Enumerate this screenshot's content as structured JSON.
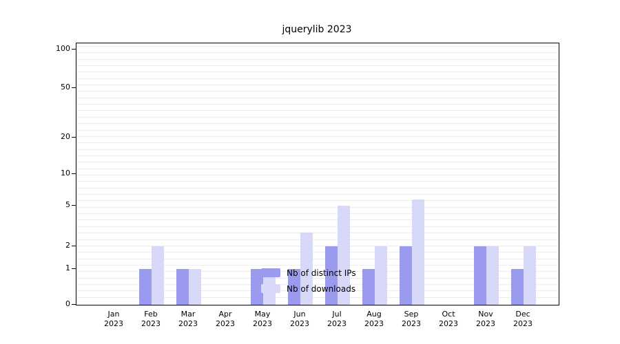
{
  "chart_data": {
    "type": "bar",
    "title": "jquerylib 2023",
    "categories": [
      "Jan",
      "Feb",
      "Mar",
      "Apr",
      "May",
      "Jun",
      "Jul",
      "Aug",
      "Sep",
      "Oct",
      "Nov",
      "Dec"
    ],
    "year": "2023",
    "series": [
      {
        "name": "Nb of distinct IPs",
        "color": "#9a9aee",
        "values": [
          0,
          1,
          1,
          0,
          1,
          1,
          2,
          1,
          2,
          0,
          2,
          1
        ]
      },
      {
        "name": "Nb of downloads",
        "color": "#d8d8f8",
        "values": [
          0,
          2,
          1,
          0,
          1,
          3,
          5,
          2,
          6,
          0,
          2,
          2
        ]
      }
    ],
    "y_ticks": [
      0,
      1,
      2,
      5,
      10,
      20,
      50,
      100
    ],
    "y_scale": "log-like",
    "ylim": [
      0,
      100
    ],
    "grid": true,
    "legend_position": "inside-bottom-center",
    "colors": {
      "grid": "#ededed",
      "axis": "#000000",
      "background": "#ffffff"
    }
  }
}
